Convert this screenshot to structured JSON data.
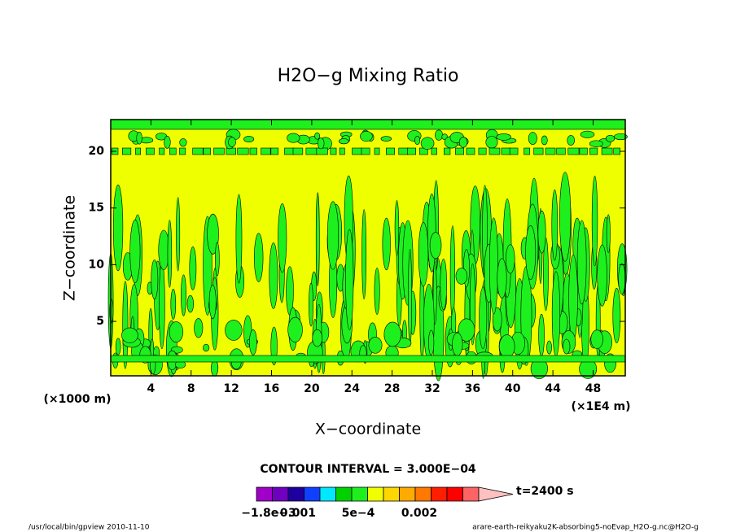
{
  "chart_data": {
    "type": "contour",
    "title": "H2O−g Mixing Ratio",
    "x_label": "X−coordinate",
    "y_label": "Z−coordinate",
    "x_unit": "(×1E4 m)",
    "y_unit": "(×1000 m)",
    "xlim": [
      0,
      51.2
    ],
    "xticks": [
      4,
      8,
      12,
      16,
      20,
      24,
      28,
      32,
      36,
      40,
      44,
      48
    ],
    "ylim": [
      0.2,
      22.8
    ],
    "yticks": [
      5,
      10,
      15,
      20
    ],
    "contour_interval": "CONTOUR INTERVAL = 3.000E−04",
    "time_label": "t=2400 s",
    "colorbar": {
      "colors": [
        "#a000c8",
        "#7000c0",
        "#1e00a0",
        "#1040ff",
        "#00e8ff",
        "#00d200",
        "#1ef01e",
        "#f0ff00",
        "#ffd700",
        "#ffaa00",
        "#ff7800",
        "#ff1e00",
        "#ff0000",
        "#ff6464",
        "#ffc0c0"
      ],
      "labels": [
        "−1.8e−3",
        "−0.001",
        "5e−4",
        "0.002"
      ]
    },
    "footer_left": "/usr/local/bin/gpview  2010-11-10",
    "footer_right": "arare-earth-reikyaku2K-absorbing5-noEvap_H2O-g.nc@H2O-g"
  }
}
